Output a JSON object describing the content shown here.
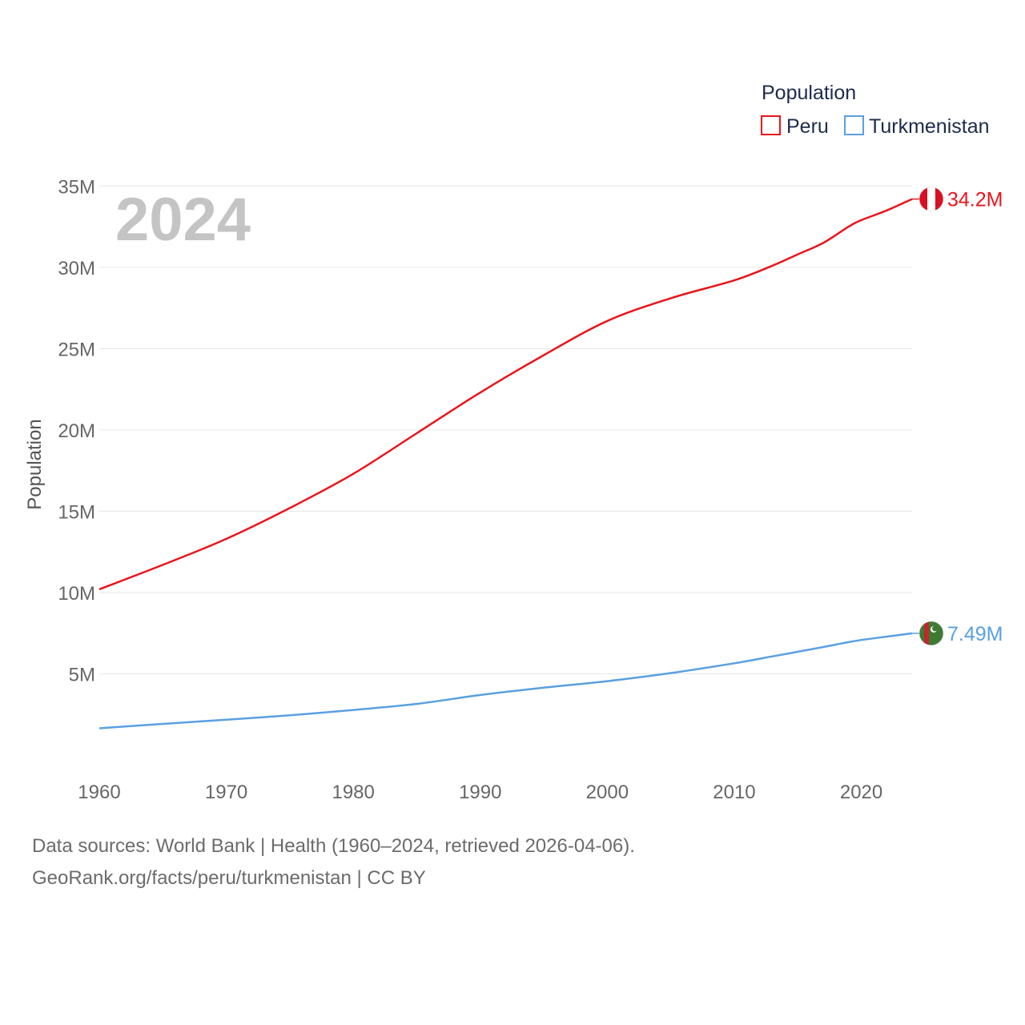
{
  "chart_data": {
    "type": "line",
    "year_overlay": "2024",
    "ylabel": "Population",
    "ylim": [
      0,
      36000000
    ],
    "xlim": [
      1960,
      2024
    ],
    "yticks": [
      5000000,
      10000000,
      15000000,
      20000000,
      25000000,
      30000000,
      35000000
    ],
    "ytick_labels": [
      "5M",
      "10M",
      "15M",
      "20M",
      "25M",
      "30M",
      "35M"
    ],
    "xticks": [
      1960,
      1970,
      1980,
      1990,
      2000,
      2010,
      2020
    ],
    "xtick_labels": [
      "1960",
      "1970",
      "1980",
      "1990",
      "2000",
      "2010",
      "2020"
    ],
    "legend": {
      "title": "Population",
      "placement": "top-right"
    },
    "x": [
      1960,
      1965,
      1970,
      1975,
      1980,
      1985,
      1990,
      1995,
      2000,
      2005,
      2010,
      2013,
      2015,
      2017,
      2019,
      2020,
      2022,
      2024
    ],
    "series": [
      {
        "name": "Peru",
        "color": "#e8151b",
        "flag_icon": "peru-flag-icon",
        "end_label": "34.2M",
        "values": [
          10200000,
          11700000,
          13300000,
          15200000,
          17300000,
          19800000,
          22300000,
          24600000,
          26700000,
          28100000,
          29200000,
          30100000,
          30800000,
          31500000,
          32500000,
          32900000,
          33500000,
          34200000
        ]
      },
      {
        "name": "Turkmenistan",
        "color": "#5aa0e0",
        "flag_icon": "turkmenistan-flag-icon",
        "end_label": "7.49M",
        "values": [
          1650000,
          1920000,
          2180000,
          2450000,
          2780000,
          3150000,
          3700000,
          4150000,
          4550000,
          5050000,
          5650000,
          6070000,
          6360000,
          6650000,
          6950000,
          7080000,
          7290000,
          7490000
        ]
      }
    ]
  },
  "footer": {
    "line1": "Data sources: World Bank | Health (1960–2024, retrieved 2026-04-06).",
    "line2": "GeoRank.org/facts/peru/turkmenistan | CC BY"
  }
}
